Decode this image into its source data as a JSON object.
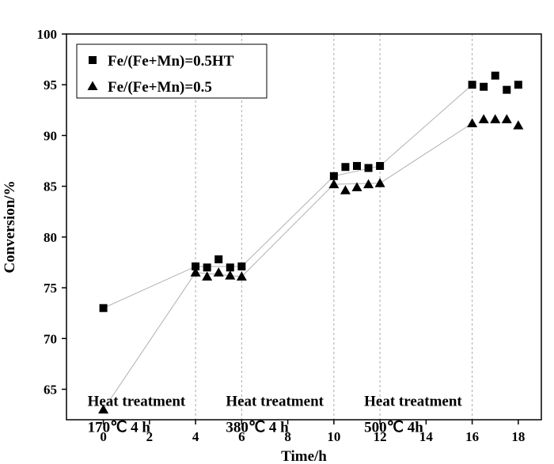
{
  "chart_data": {
    "type": "scatter",
    "title": "",
    "xlabel": "Time/h",
    "ylabel": "Conversion/%",
    "xlim": [
      -1.6,
      19
    ],
    "ylim": [
      62,
      100
    ],
    "xticks": [
      0,
      2,
      4,
      6,
      8,
      10,
      12,
      14,
      16,
      18
    ],
    "yticks": [
      65,
      70,
      75,
      80,
      85,
      90,
      95,
      100
    ],
    "vlines": [
      4,
      6,
      10,
      12,
      16
    ],
    "legend_position": "top-left",
    "grid": false,
    "series": [
      {
        "name": "Fe/(Fe+Mn)=0.5HT",
        "marker": "square",
        "color": "#000000",
        "x": [
          0,
          4,
          4.5,
          5,
          5.5,
          6,
          10,
          10.5,
          11,
          11.5,
          12,
          16,
          16.5,
          17,
          17.5,
          18
        ],
        "y": [
          73.0,
          77.1,
          77.0,
          77.8,
          77.0,
          77.1,
          86.0,
          86.9,
          87.0,
          86.8,
          87.0,
          95.0,
          94.8,
          95.9,
          94.5,
          95.0
        ],
        "connect_x": [
          0,
          4,
          6,
          10,
          12,
          16
        ],
        "connect_y": [
          73.0,
          77.1,
          77.1,
          86.0,
          87.0,
          95.0
        ]
      },
      {
        "name": "Fe/(Fe+Mn)=0.5",
        "marker": "triangle",
        "color": "#000000",
        "x": [
          0,
          4,
          4.5,
          5,
          5.5,
          6,
          10,
          10.5,
          11,
          11.5,
          12,
          16,
          16.5,
          17,
          17.5,
          18
        ],
        "y": [
          63.0,
          76.5,
          76.1,
          76.5,
          76.2,
          76.1,
          85.2,
          84.6,
          84.9,
          85.2,
          85.3,
          91.2,
          91.6,
          91.6,
          91.6,
          91.0
        ],
        "connect_x": [
          0,
          4,
          6,
          10,
          12,
          16
        ],
        "connect_y": [
          63.0,
          76.5,
          76.1,
          85.2,
          85.3,
          91.2
        ]
      }
    ],
    "annotations": [
      {
        "id": "ht1",
        "line1": "Heat treatment",
        "line2": "170℃ 4 h",
        "x": 0,
        "y": 64.3
      },
      {
        "id": "ht2",
        "line1": "Heat treatment",
        "line2": "380℃ 4 h",
        "x": 6,
        "y": 64.3
      },
      {
        "id": "ht3",
        "line1": "Heat treatment",
        "line2": "500℃ 4h",
        "x": 12,
        "y": 64.3
      }
    ]
  }
}
